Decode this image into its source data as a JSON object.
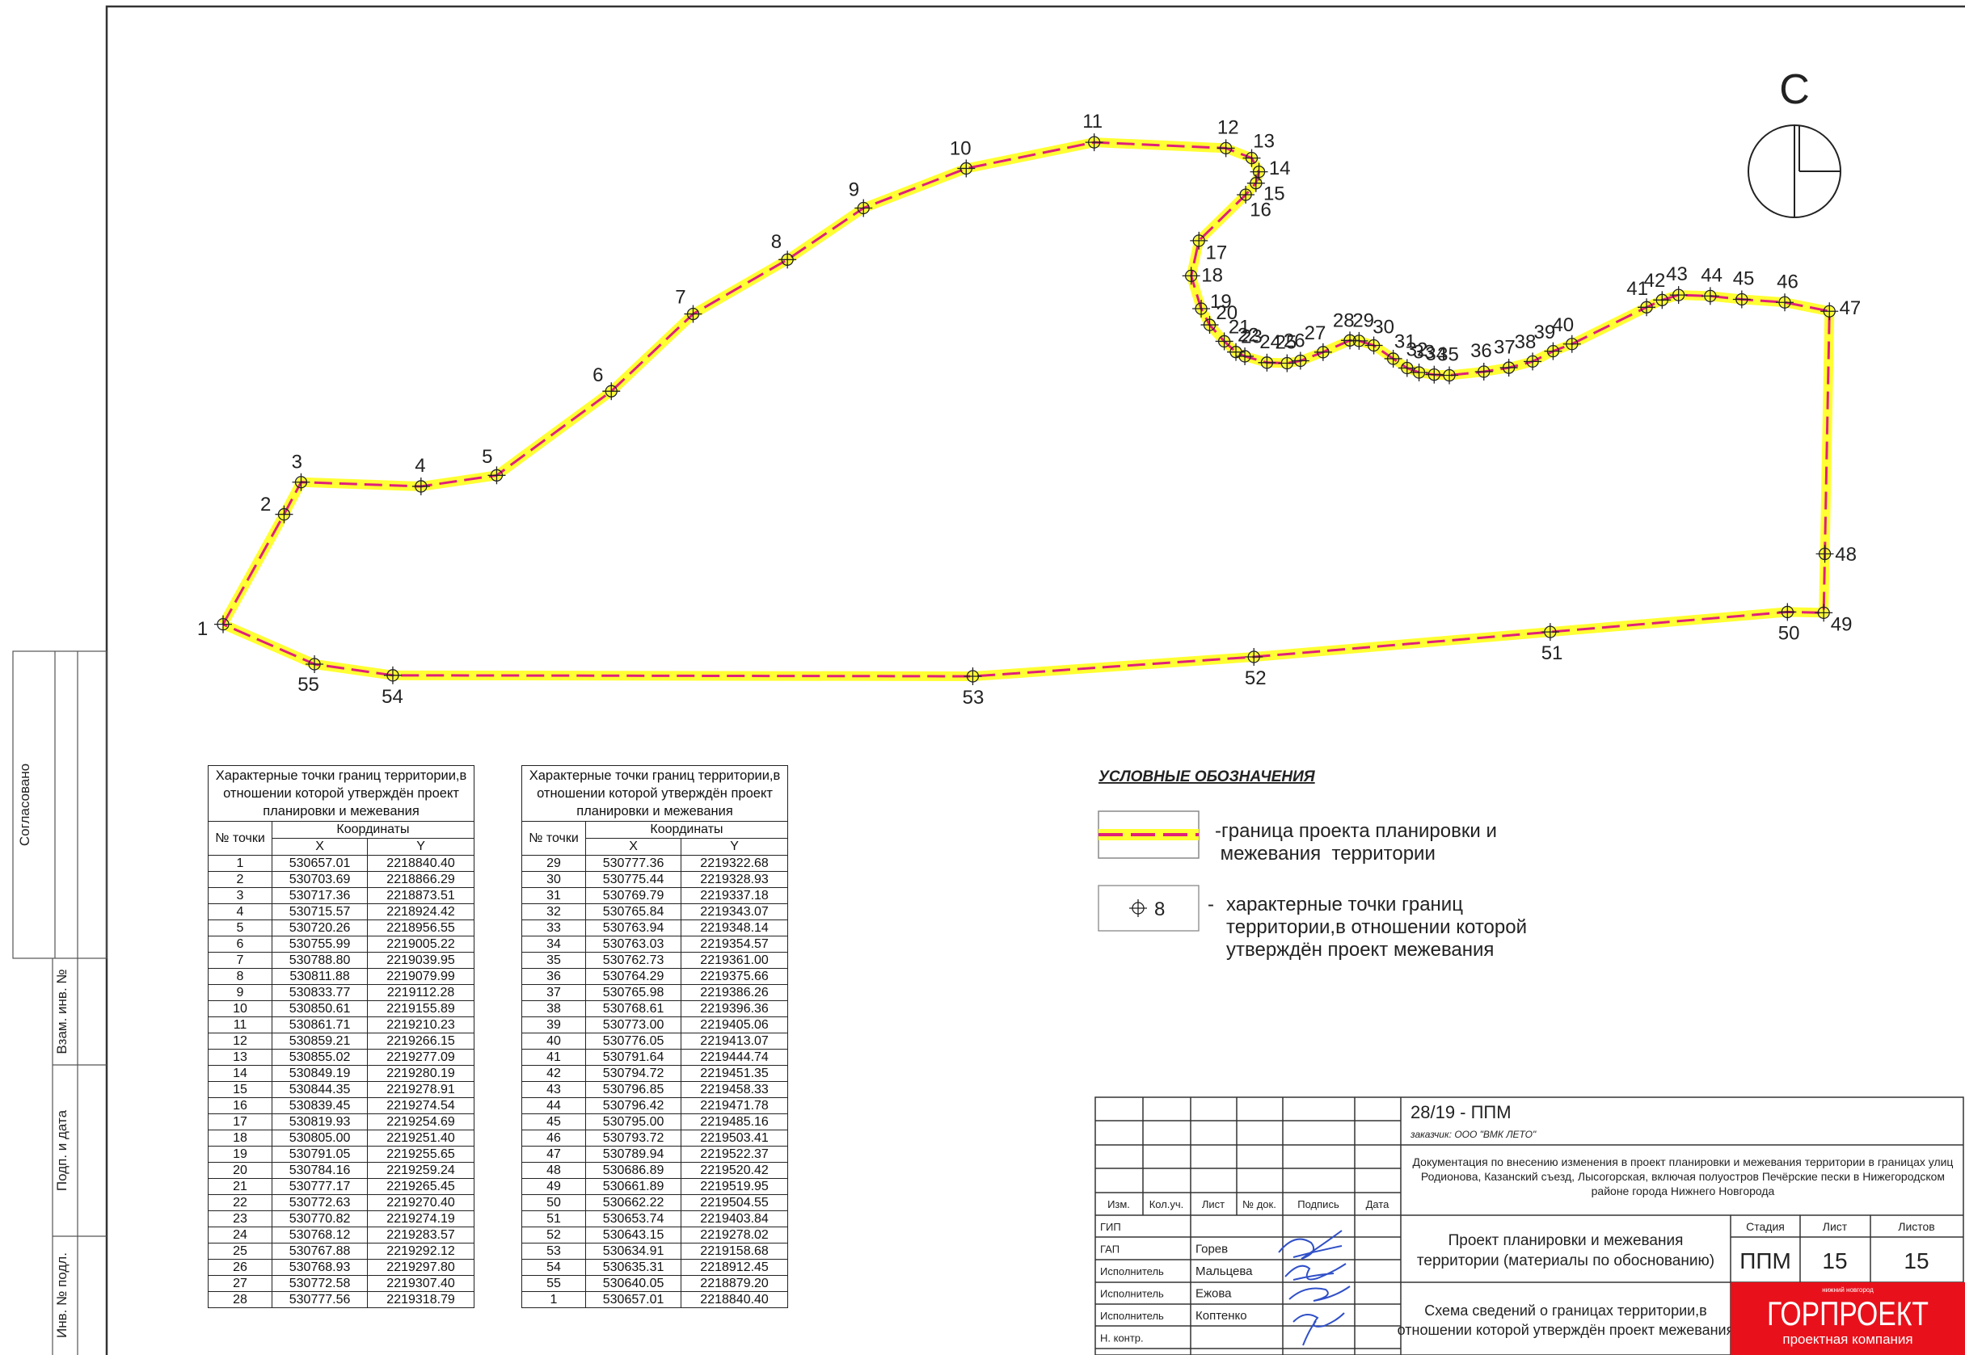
{
  "map": {
    "north_label": "С"
  },
  "tables": [
    {
      "title": [
        "Характерные точки границ территории,в",
        "отношении которой утверждён проект",
        "планировки и межевания"
      ],
      "col_number": "№ точки",
      "col_coords": "Координаты",
      "col_x": "X",
      "col_y": "Y",
      "rows": [
        [
          "1",
          "530657.01",
          "2218840.40"
        ],
        [
          "2",
          "530703.69",
          "2218866.29"
        ],
        [
          "3",
          "530717.36",
          "2218873.51"
        ],
        [
          "4",
          "530715.57",
          "2218924.42"
        ],
        [
          "5",
          "530720.26",
          "2218956.55"
        ],
        [
          "6",
          "530755.99",
          "2219005.22"
        ],
        [
          "7",
          "530788.80",
          "2219039.95"
        ],
        [
          "8",
          "530811.88",
          "2219079.99"
        ],
        [
          "9",
          "530833.77",
          "2219112.28"
        ],
        [
          "10",
          "530850.61",
          "2219155.89"
        ],
        [
          "11",
          "530861.71",
          "2219210.23"
        ],
        [
          "12",
          "530859.21",
          "2219266.15"
        ],
        [
          "13",
          "530855.02",
          "2219277.09"
        ],
        [
          "14",
          "530849.19",
          "2219280.19"
        ],
        [
          "15",
          "530844.35",
          "2219278.91"
        ],
        [
          "16",
          "530839.45",
          "2219274.54"
        ],
        [
          "17",
          "530819.93",
          "2219254.69"
        ],
        [
          "18",
          "530805.00",
          "2219251.40"
        ],
        [
          "19",
          "530791.05",
          "2219255.65"
        ],
        [
          "20",
          "530784.16",
          "2219259.24"
        ],
        [
          "21",
          "530777.17",
          "2219265.45"
        ],
        [
          "22",
          "530772.63",
          "2219270.40"
        ],
        [
          "23",
          "530770.82",
          "2219274.19"
        ],
        [
          "24",
          "530768.12",
          "2219283.57"
        ],
        [
          "25",
          "530767.88",
          "2219292.12"
        ],
        [
          "26",
          "530768.93",
          "2219297.80"
        ],
        [
          "27",
          "530772.58",
          "2219307.40"
        ],
        [
          "28",
          "530777.56",
          "2219318.79"
        ]
      ]
    },
    {
      "title": [
        "Характерные точки границ территории,в",
        "отношении которой утверждён проект",
        "планировки и межевания"
      ],
      "col_number": "№ точки",
      "col_coords": "Координаты",
      "col_x": "X",
      "col_y": "Y",
      "rows": [
        [
          "29",
          "530777.36",
          "2219322.68"
        ],
        [
          "30",
          "530775.44",
          "2219328.93"
        ],
        [
          "31",
          "530769.79",
          "2219337.18"
        ],
        [
          "32",
          "530765.84",
          "2219343.07"
        ],
        [
          "33",
          "530763.94",
          "2219348.14"
        ],
        [
          "34",
          "530763.03",
          "2219354.57"
        ],
        [
          "35",
          "530762.73",
          "2219361.00"
        ],
        [
          "36",
          "530764.29",
          "2219375.66"
        ],
        [
          "37",
          "530765.98",
          "2219386.26"
        ],
        [
          "38",
          "530768.61",
          "2219396.36"
        ],
        [
          "39",
          "530773.00",
          "2219405.06"
        ],
        [
          "40",
          "530776.05",
          "2219413.07"
        ],
        [
          "41",
          "530791.64",
          "2219444.74"
        ],
        [
          "42",
          "530794.72",
          "2219451.35"
        ],
        [
          "43",
          "530796.85",
          "2219458.33"
        ],
        [
          "44",
          "530796.42",
          "2219471.78"
        ],
        [
          "45",
          "530795.00",
          "2219485.16"
        ],
        [
          "46",
          "530793.72",
          "2219503.41"
        ],
        [
          "47",
          "530789.94",
          "2219522.37"
        ],
        [
          "48",
          "530686.89",
          "2219520.42"
        ],
        [
          "49",
          "530661.89",
          "2219519.95"
        ],
        [
          "50",
          "530662.22",
          "2219504.55"
        ],
        [
          "51",
          "530653.74",
          "2219403.84"
        ],
        [
          "52",
          "530643.15",
          "2219278.02"
        ],
        [
          "53",
          "530634.91",
          "2219158.68"
        ],
        [
          "54",
          "530635.31",
          "2218912.45"
        ],
        [
          "55",
          "530640.05",
          "2218879.20"
        ],
        [
          "1",
          "530657.01",
          "2218840.40"
        ]
      ]
    }
  ],
  "legend": {
    "title": "УСЛОВНЫЕ ОБОЗНАЧЕНИЯ",
    "items": [
      {
        "lines": [
          "-граница проекта планировки и",
          " межевания  территории"
        ]
      },
      {
        "sample": "8",
        "dash": "-",
        "lines": [
          "характерные точки границ",
          "территории,в отношении которой",
          "утверждён проект межевания"
        ]
      }
    ]
  },
  "stamps": [
    "Согласовано",
    "Взам. инв. №",
    "Подп. и дата",
    "Инв. № подл."
  ],
  "title_block": {
    "code": "28/19 - ППМ",
    "client": "заказчик: ООО \"ВМК ЛЕТО\"",
    "description": [
      "Документация по внесению изменения в проект планировки и межевания территории в границах улиц",
      "Родионова, Казанский съезд, Лысогорская, включая полуостров Печёрские пески в Нижегородском",
      "районе города Нижнего Новгорода"
    ],
    "headers": [
      "Изм.",
      "Кол.уч.",
      "Лист",
      "№ док.",
      "Подпись",
      "Дата"
    ],
    "staff": [
      {
        "role": "ГИП"
      },
      {
        "role": "ГАП",
        "name": "Горев"
      },
      {
        "role": "Исполнитель",
        "name": "Мальцева"
      },
      {
        "role": "Исполнитель",
        "name": "Ежова"
      },
      {
        "role": "Исполнитель",
        "name": "Коптенко"
      },
      {
        "role": "Н. контр."
      }
    ],
    "project": [
      "Проект планировки и межевания",
      "территории (материалы по обоснованию)"
    ],
    "stage_headers": [
      "Стадия",
      "Лист",
      "Листов"
    ],
    "stage_values": [
      "ППМ",
      "15",
      "15"
    ],
    "sheet": [
      "Схема сведений о границах территории,в",
      "отношении которой утверждён проект межевания"
    ],
    "logo": {
      "city": "нижний новгород",
      "name": "ГОРПРОЕКТ",
      "tagline": "проектная компания"
    }
  }
}
